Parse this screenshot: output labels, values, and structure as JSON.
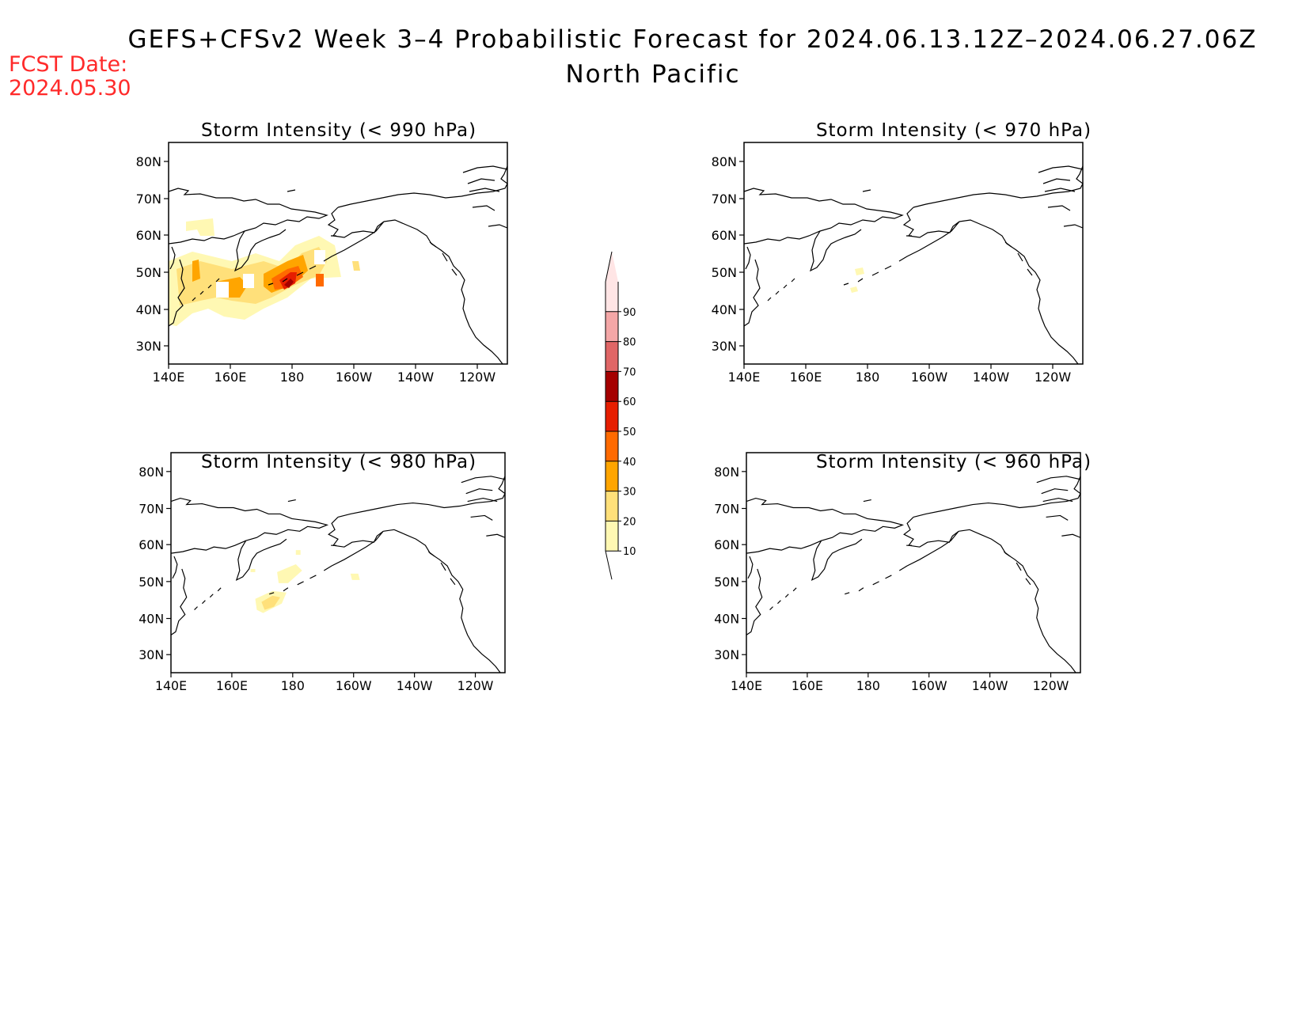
{
  "header": {
    "title": "GEFS+CFSv2 Week 3–4 Probabilistic Forecast for 2024.06.13.12Z–2024.06.27.06Z",
    "subtitle": "North Pacific",
    "fcst_label": "FCST Date:",
    "fcst_date": "2024.05.30",
    "fcst_color": "#ff2a2a"
  },
  "axes": {
    "lon_ticks": [
      "140E",
      "160E",
      "180",
      "160W",
      "140W",
      "120W"
    ],
    "lat_ticks": [
      "80N",
      "70N",
      "60N",
      "50N",
      "40N",
      "30N"
    ]
  },
  "panels": [
    {
      "id": "p990",
      "title": "Storm Intensity (< 990 hPa)"
    },
    {
      "id": "p970",
      "title": "Storm Intensity (< 970 hPa)"
    },
    {
      "id": "p980",
      "title": "Storm Intensity (< 980 hPa)"
    },
    {
      "id": "p960",
      "title": "Storm Intensity (< 960 hPa)"
    }
  ],
  "colorbar": {
    "levels": [
      "10",
      "20",
      "30",
      "40",
      "50",
      "60",
      "70",
      "80",
      "90"
    ],
    "colors": [
      "#fff8b3",
      "#ffe07a",
      "#ffa500",
      "#ff6a00",
      "#e61e00",
      "#a50000",
      "#e06666",
      "#f4a7a7",
      "#ffe5e5"
    ]
  }
}
